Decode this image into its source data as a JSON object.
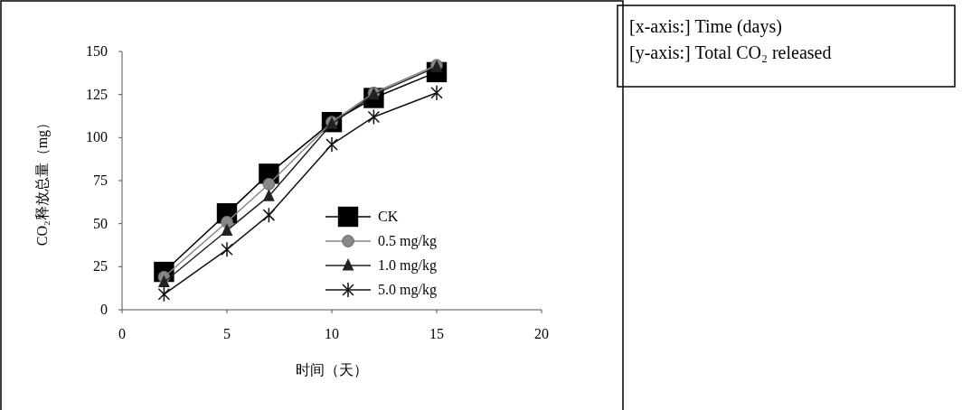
{
  "chart_data": {
    "type": "line",
    "xlabel": "时间（天）",
    "ylabel": "CO₂释放总量（mg）",
    "annotations": [
      "[x-axis:] Time (days)",
      "[y-axis:] Total CO₂ released"
    ],
    "x": [
      2,
      5,
      7,
      10,
      12,
      15
    ],
    "xlim": [
      0,
      20
    ],
    "xticks": [
      0,
      5,
      10,
      15,
      20
    ],
    "ylim": [
      0,
      150
    ],
    "yticks": [
      0,
      25,
      50,
      75,
      100,
      125,
      150
    ],
    "grid": false,
    "legend": "right",
    "series": [
      {
        "name": "CK",
        "color": "#000000",
        "marker": "square",
        "values": [
          22,
          56,
          79,
          109,
          123,
          138
        ]
      },
      {
        "name": "0.5 mg/kg",
        "color": "#888888",
        "marker": "circle",
        "values": [
          19,
          51,
          73,
          109,
          126,
          142
        ]
      },
      {
        "name": "1.0 mg/kg",
        "color": "#222222",
        "marker": "triangle",
        "values": [
          16,
          46,
          66,
          108,
          125,
          141
        ]
      },
      {
        "name": "5.0 mg/kg",
        "color": "#111111",
        "marker": "cross",
        "values": [
          9,
          35,
          55,
          96,
          112,
          126
        ]
      }
    ]
  }
}
